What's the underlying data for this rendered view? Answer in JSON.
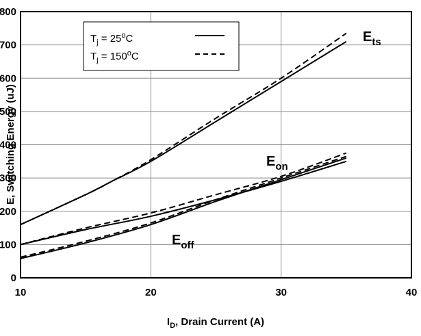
{
  "chart_data": {
    "type": "line",
    "xlabel": {
      "main": "I",
      "sub": "D",
      "rest": ", Drain Current (A)"
    },
    "ylabel": "E, Switching Energy (uJ)",
    "xlim": [
      10,
      40
    ],
    "ylim": [
      0,
      800
    ],
    "xticks": [
      10,
      20,
      30,
      40
    ],
    "yticks": [
      0,
      100,
      200,
      300,
      400,
      500,
      600,
      700,
      800
    ],
    "grid": true,
    "legend_position": "top-left",
    "legend": [
      {
        "pre": "T",
        "sub": "j",
        "mid": " = 25",
        "sup": "o",
        "post": "C",
        "style": "solid"
      },
      {
        "pre": "T",
        "sub": "j",
        "mid": " = 150",
        "sup": "o",
        "post": "C",
        "style": "dashed"
      }
    ],
    "annotations": [
      {
        "base": "E",
        "sub": "ts"
      },
      {
        "base": "E",
        "sub": "on"
      },
      {
        "base": "E",
        "sub": "off"
      }
    ],
    "series": [
      {
        "style": "solid",
        "x": [
          10,
          15,
          17,
          20,
          25,
          30,
          35
        ],
        "values": [
          160,
          250,
          290,
          350,
          470,
          590,
          710
        ]
      },
      {
        "style": "dashed",
        "x": [
          10,
          15,
          17,
          20,
          25,
          30,
          35
        ],
        "values": [
          160,
          250,
          290,
          355,
          480,
          600,
          735
        ]
      },
      {
        "style": "solid",
        "x": [
          10,
          15,
          20,
          25,
          30,
          35
        ],
        "values": [
          100,
          145,
          185,
          235,
          290,
          350
        ]
      },
      {
        "style": "dashed",
        "x": [
          10,
          15,
          20,
          25,
          30,
          35
        ],
        "values": [
          100,
          150,
          195,
          250,
          305,
          375
        ]
      },
      {
        "style": "solid",
        "x": [
          10,
          15,
          20,
          25,
          30,
          35
        ],
        "values": [
          58,
          105,
          160,
          230,
          295,
          360
        ]
      },
      {
        "style": "dashed",
        "x": [
          10,
          15,
          20,
          25,
          30,
          35
        ],
        "values": [
          62,
          110,
          165,
          235,
          300,
          365
        ]
      }
    ]
  }
}
